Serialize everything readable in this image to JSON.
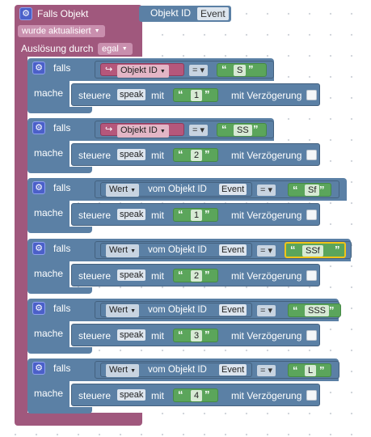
{
  "event_block": {
    "title": "Falls Objekt",
    "object_label": "Objekt ID",
    "object_value": "Event",
    "trigger_value": "wurde aktualisiert",
    "trigger_by_label": "Auslösung durch",
    "trigger_by_value": "egal"
  },
  "labels": {
    "if": "falls",
    "do": "mache",
    "control": "steuere",
    "with": "mit",
    "delay": "mit Verzögerung",
    "object_id": "Objekt ID",
    "value": "Wert",
    "of_object_id": "vom Objekt ID",
    "event": "Event",
    "equals": "=",
    "speak": "speak",
    "open_quote": "“",
    "close_quote": "”",
    "link_icon": "↪"
  },
  "icons": {
    "gear": "gear-icon",
    "dropdown": "chevron-down-icon",
    "checkbox": "checkbox-icon",
    "link": "link-arrow-icon"
  },
  "rules": [
    {
      "condition_type": "objekt_id",
      "compare": "S",
      "speak_value": "1"
    },
    {
      "condition_type": "objekt_id",
      "compare": "SS",
      "speak_value": "2"
    },
    {
      "condition_type": "wert",
      "compare": "Sf",
      "speak_value": "1"
    },
    {
      "condition_type": "wert",
      "compare": "SSf",
      "speak_value": "2",
      "selected": true
    },
    {
      "condition_type": "wert",
      "compare": "SSS",
      "speak_value": "3"
    },
    {
      "condition_type": "wert",
      "compare": "L",
      "speak_value": "4"
    }
  ],
  "colors": {
    "event": "#a0587d",
    "control": "#5b80a5",
    "text": "#5ba55b",
    "object": "#b5577b",
    "selection": "#f0c419"
  }
}
